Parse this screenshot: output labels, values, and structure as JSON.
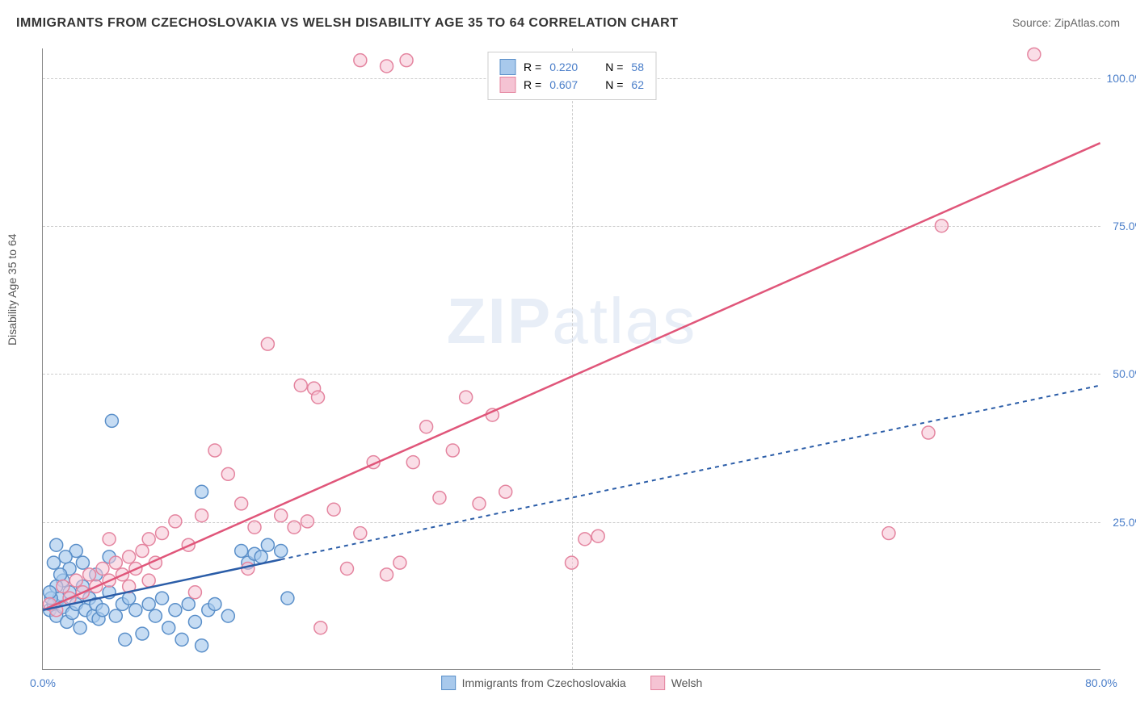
{
  "title": "IMMIGRANTS FROM CZECHOSLOVAKIA VS WELSH DISABILITY AGE 35 TO 64 CORRELATION CHART",
  "source_prefix": "Source: ",
  "source_name": "ZipAtlas.com",
  "y_axis_label": "Disability Age 35 to 64",
  "watermark_a": "ZIP",
  "watermark_b": "atlas",
  "chart": {
    "type": "scatter",
    "xlim": [
      0,
      80
    ],
    "ylim": [
      0,
      105
    ],
    "x_ticks": [
      0,
      40,
      80
    ],
    "x_tick_labels": [
      "0.0%",
      "",
      "80.0%"
    ],
    "y_ticks": [
      25,
      50,
      75,
      100
    ],
    "y_tick_labels": [
      "25.0%",
      "50.0%",
      "75.0%",
      "100.0%"
    ],
    "grid_color": "#cccccc",
    "axis_color": "#888888",
    "background_color": "#ffffff",
    "tick_label_color": "#4a7ec9",
    "series": [
      {
        "name": "Immigrants from Czechoslovakia",
        "color_fill": "#a8c9ec",
        "color_stroke": "#5a8fc9",
        "marker_radius": 8,
        "marker_opacity": 0.65,
        "R": "0.220",
        "N": "58",
        "trend_color": "#2b5da8",
        "trend_dash": "5,5",
        "trend_solid_until_x": 18,
        "trend_start": [
          0,
          10
        ],
        "trend_end": [
          80,
          48
        ],
        "points": [
          [
            0.5,
            10
          ],
          [
            0.8,
            11
          ],
          [
            1.0,
            9
          ],
          [
            1.2,
            12
          ],
          [
            1.5,
            10.5
          ],
          [
            1.8,
            8
          ],
          [
            2.0,
            13
          ],
          [
            2.2,
            9.5
          ],
          [
            2.5,
            11
          ],
          [
            2.8,
            7
          ],
          [
            3.0,
            14
          ],
          [
            3.2,
            10
          ],
          [
            3.5,
            12
          ],
          [
            3.8,
            9
          ],
          [
            4.0,
            11
          ],
          [
            4.2,
            8.5
          ],
          [
            4.5,
            10
          ],
          [
            5.0,
            13
          ],
          [
            5.2,
            42
          ],
          [
            5.5,
            9
          ],
          [
            6.0,
            11
          ],
          [
            6.2,
            5
          ],
          [
            6.5,
            12
          ],
          [
            7.0,
            10
          ],
          [
            7.5,
            6
          ],
          [
            8.0,
            11
          ],
          [
            8.5,
            9
          ],
          [
            9.0,
            12
          ],
          [
            9.5,
            7
          ],
          [
            10.0,
            10
          ],
          [
            10.5,
            5
          ],
          [
            11.0,
            11
          ],
          [
            11.5,
            8
          ],
          [
            12.0,
            4
          ],
          [
            12.5,
            10
          ],
          [
            13.0,
            11
          ],
          [
            14.0,
            9
          ],
          [
            15.0,
            20
          ],
          [
            15.5,
            18
          ],
          [
            16.0,
            19.5
          ],
          [
            16.5,
            19
          ],
          [
            17.0,
            21
          ],
          [
            18.0,
            20
          ],
          [
            18.5,
            12
          ],
          [
            2.0,
            17
          ],
          [
            3.0,
            18
          ],
          [
            4.0,
            16
          ],
          [
            5.0,
            19
          ],
          [
            1.5,
            15
          ],
          [
            2.5,
            20
          ],
          [
            1.0,
            14
          ],
          [
            0.8,
            18
          ],
          [
            0.6,
            12
          ],
          [
            1.3,
            16
          ],
          [
            1.7,
            19
          ],
          [
            12.0,
            30
          ],
          [
            1.0,
            21
          ],
          [
            0.5,
            13
          ]
        ]
      },
      {
        "name": "Welsh",
        "color_fill": "#f5c3d3",
        "color_stroke": "#e4849f",
        "marker_radius": 8,
        "marker_opacity": 0.55,
        "R": "0.607",
        "N": "62",
        "trend_color": "#e0567a",
        "trend_dash": "none",
        "trend_solid_until_x": 80,
        "trend_start": [
          0,
          10
        ],
        "trend_end": [
          80,
          89
        ],
        "points": [
          [
            0.5,
            11
          ],
          [
            1.0,
            10
          ],
          [
            1.5,
            14
          ],
          [
            2.0,
            12
          ],
          [
            2.5,
            15
          ],
          [
            3.0,
            13
          ],
          [
            3.5,
            16
          ],
          [
            4.0,
            14
          ],
          [
            4.5,
            17
          ],
          [
            5.0,
            15
          ],
          [
            5.5,
            18
          ],
          [
            6.0,
            16
          ],
          [
            6.5,
            19
          ],
          [
            7.0,
            17
          ],
          [
            7.5,
            20
          ],
          [
            8.0,
            22
          ],
          [
            8.5,
            18
          ],
          [
            9.0,
            23
          ],
          [
            10.0,
            25
          ],
          [
            11.0,
            21
          ],
          [
            12.0,
            26
          ],
          [
            13.0,
            37
          ],
          [
            14.0,
            33
          ],
          [
            15.0,
            28
          ],
          [
            15.5,
            17
          ],
          [
            16.0,
            24
          ],
          [
            17.0,
            55
          ],
          [
            18.0,
            26
          ],
          [
            19.0,
            24
          ],
          [
            19.5,
            48
          ],
          [
            20.0,
            25
          ],
          [
            20.5,
            47.5
          ],
          [
            20.8,
            46
          ],
          [
            21.0,
            7
          ],
          [
            22.0,
            27
          ],
          [
            23.0,
            17
          ],
          [
            24.0,
            23
          ],
          [
            25.0,
            35
          ],
          [
            26.0,
            16
          ],
          [
            27.0,
            18
          ],
          [
            28.0,
            35
          ],
          [
            29.0,
            41
          ],
          [
            30.0,
            29
          ],
          [
            31.0,
            37
          ],
          [
            32.0,
            46
          ],
          [
            33.0,
            28
          ],
          [
            34.0,
            43
          ],
          [
            35.0,
            30
          ],
          [
            40.0,
            18
          ],
          [
            41.0,
            22
          ],
          [
            42.0,
            22.5
          ],
          [
            64.0,
            23
          ],
          [
            67.0,
            40
          ],
          [
            68.0,
            75
          ],
          [
            75.0,
            104
          ],
          [
            26.0,
            102
          ],
          [
            27.5,
            103
          ],
          [
            24.0,
            103
          ],
          [
            5.0,
            22
          ],
          [
            6.5,
            14
          ],
          [
            8.0,
            15
          ],
          [
            11.5,
            13
          ]
        ]
      }
    ]
  },
  "legend_top_labels": {
    "R_prefix": "R =",
    "N_prefix": "N ="
  }
}
